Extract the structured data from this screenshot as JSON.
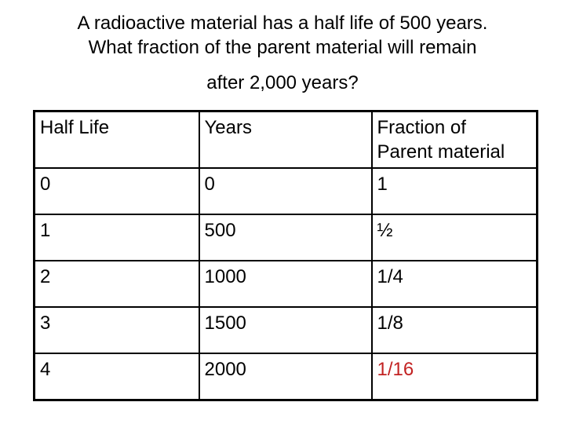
{
  "title": {
    "lines": [
      "A radioactive material has a half life of 500 years.",
      "What fraction of the parent material will remain",
      "after 2,000 years?"
    ]
  },
  "table": {
    "columns": [
      "Half Life",
      "Years",
      "Fraction of Parent material"
    ],
    "rows": [
      {
        "half_life": "0",
        "years": "0",
        "fraction": "1"
      },
      {
        "half_life": "1",
        "years": "500",
        "fraction": "½"
      },
      {
        "half_life": "2",
        "years": "1000",
        "fraction": "1/4"
      },
      {
        "half_life": "3",
        "years": "1500",
        "fraction": "1/8"
      },
      {
        "half_life": "4",
        "years": "2000",
        "fraction": "1/16"
      }
    ]
  },
  "colors": {
    "background": "#ffffff",
    "text": "#000000",
    "border": "#000000",
    "highlight_red": "#c22222"
  }
}
